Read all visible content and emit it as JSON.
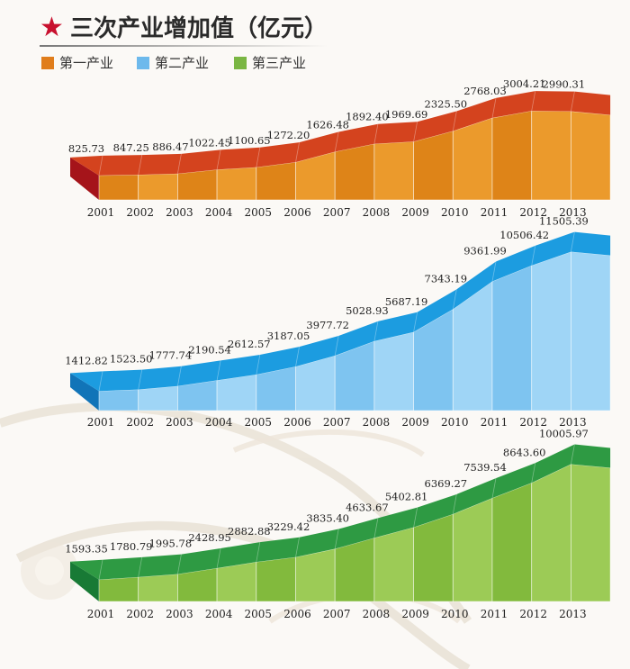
{
  "title": "三次产业增加值（亿元）",
  "star": "★",
  "legend": [
    {
      "label": "第一产业",
      "color": "#e07d1c"
    },
    {
      "label": "第二产业",
      "color": "#6db9ec"
    },
    {
      "label": "第三产业",
      "color": "#7ab643"
    }
  ],
  "colors": {
    "primary": {
      "top": "#d4431e",
      "front": "#de8418",
      "frontLight": "#eb9a2c",
      "left": "#a5141a"
    },
    "secondary": {
      "top": "#1c9ce0",
      "front": "#7ec4f0",
      "frontLight": "#9fd5f6",
      "left": "#1174b8"
    },
    "tertiary": {
      "top": "#2e9a43",
      "front": "#82ba3d",
      "frontLight": "#9ccb56",
      "left": "#187a35"
    }
  },
  "chart_data": [
    {
      "type": "area",
      "key": "primary",
      "categories": [
        "2001",
        "2002",
        "2003",
        "2004",
        "2005",
        "2006",
        "2007",
        "2008",
        "2009",
        "2010",
        "2011",
        "2012",
        "2013"
      ],
      "value_labels": [
        "825.73",
        "847.25",
        "886.47",
        "1022.45",
        "1100.65",
        "1272.20",
        "1626.48",
        "1892.40",
        "1969.69",
        "2325.50",
        "2768.03",
        "3004.21",
        "2990.31"
      ],
      "values": [
        825.73,
        847.25,
        886.47,
        1022.45,
        1100.65,
        1272.2,
        1626.48,
        1892.4,
        1969.69,
        2325.5,
        2768.03,
        3004.21,
        2990.31
      ],
      "ylim": [
        0,
        3100
      ]
    },
    {
      "type": "area",
      "key": "secondary",
      "categories": [
        "2001",
        "2002",
        "2003",
        "2004",
        "2005",
        "2006",
        "2007",
        "2008",
        "2009",
        "2010",
        "2011",
        "2012",
        "2013"
      ],
      "value_labels": [
        "1412.82",
        "1523.50",
        "1777.74",
        "2190.54",
        "2612.57",
        "3187.05",
        "3977.72",
        "5028.93",
        "5687.19",
        "7343.19",
        "9361.99",
        "10506.42",
        "11505.39"
      ],
      "values": [
        1412.82,
        1523.5,
        1777.74,
        2190.54,
        2612.57,
        3187.05,
        3977.72,
        5028.93,
        5687.19,
        7343.19,
        9361.99,
        10506.42,
        11505.39
      ],
      "ylim": [
        0,
        12000
      ]
    },
    {
      "type": "area",
      "key": "tertiary",
      "categories": [
        "2001",
        "2002",
        "2003",
        "2004",
        "2005",
        "2006",
        "2007",
        "2008",
        "2009",
        "2010",
        "2011",
        "2012",
        "2013"
      ],
      "value_labels": [
        "1593.35",
        "1780.79",
        "1995.78",
        "2428.95",
        "2882.88",
        "3229.42",
        "3835.40",
        "4633.67",
        "5402.81",
        "6369.27",
        "7539.54",
        "8643.60",
        "10005.97"
      ],
      "values": [
        1593.35,
        1780.79,
        1995.78,
        2428.95,
        2882.88,
        3229.42,
        3835.4,
        4633.67,
        5402.81,
        6369.27,
        7539.54,
        8643.6,
        10005.97
      ],
      "ylim": [
        0,
        10500
      ]
    }
  ]
}
